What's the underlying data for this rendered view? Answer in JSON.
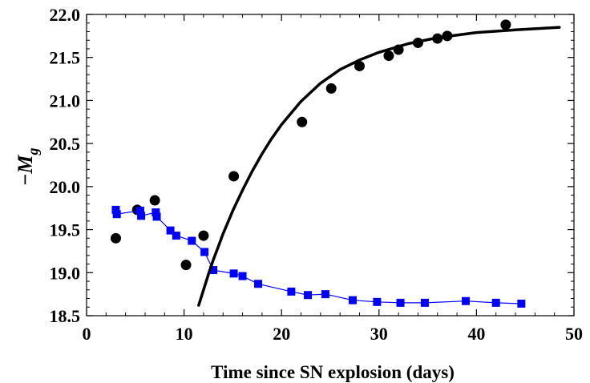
{
  "chart_data": {
    "type": "scatter",
    "xlabel": "Time since SN explosion (days)",
    "ylabel": {
      "prefix": "−",
      "symbol": "M",
      "subscript": "g"
    },
    "xlim": [
      0,
      50
    ],
    "ylim": [
      18.5,
      22.0
    ],
    "xticks": [
      0,
      10,
      20,
      30,
      40,
      50
    ],
    "yticks": [
      "18.5",
      "19.0",
      "19.5",
      "20.0",
      "20.5",
      "21.0",
      "21.5",
      "22.0"
    ],
    "grid": false,
    "legend": "none",
    "series": [
      {
        "kind": "points",
        "marker": "circle",
        "color": "#000000",
        "x": [
          3.0,
          5.2,
          7.0,
          10.2,
          12.0,
          15.1,
          22.1,
          25.1,
          28.0,
          31.0,
          32.0,
          34.0,
          36.0,
          37.0,
          43.0
        ],
        "y": [
          19.4,
          19.73,
          19.84,
          19.09,
          19.43,
          20.12,
          20.75,
          21.14,
          21.4,
          21.52,
          21.59,
          21.67,
          21.72,
          21.75,
          21.88
        ]
      },
      {
        "kind": "points-line",
        "marker": "square",
        "color": "#0000ff",
        "x": [
          3.0,
          3.1,
          5.5,
          5.6,
          7.1,
          7.2,
          8.6,
          9.2,
          10.8,
          12.1,
          13.0,
          15.1,
          16.0,
          17.6,
          21.0,
          22.7,
          24.5,
          27.3,
          29.8,
          32.2,
          34.7,
          38.9,
          42.0,
          44.6
        ],
        "y": [
          19.73,
          19.68,
          19.72,
          19.66,
          19.7,
          19.65,
          19.49,
          19.43,
          19.37,
          19.24,
          19.03,
          18.99,
          18.96,
          18.87,
          18.78,
          18.74,
          18.75,
          18.68,
          18.66,
          18.65,
          18.65,
          18.67,
          18.65,
          18.64
        ]
      },
      {
        "kind": "curve",
        "color": "#000000",
        "x": [
          11.5,
          12.0,
          12.5,
          13.0,
          13.5,
          14.0,
          15.0,
          16.0,
          17.0,
          18.0,
          19.0,
          20.0,
          22.0,
          24.0,
          26.0,
          28.0,
          30.0,
          33.0,
          36.0,
          40.0,
          44.0,
          48.5
        ],
        "y": [
          18.62,
          18.8,
          18.98,
          19.15,
          19.3,
          19.45,
          19.72,
          19.96,
          20.18,
          20.38,
          20.56,
          20.72,
          20.99,
          21.2,
          21.36,
          21.47,
          21.56,
          21.66,
          21.73,
          21.79,
          21.82,
          21.85
        ]
      }
    ]
  }
}
